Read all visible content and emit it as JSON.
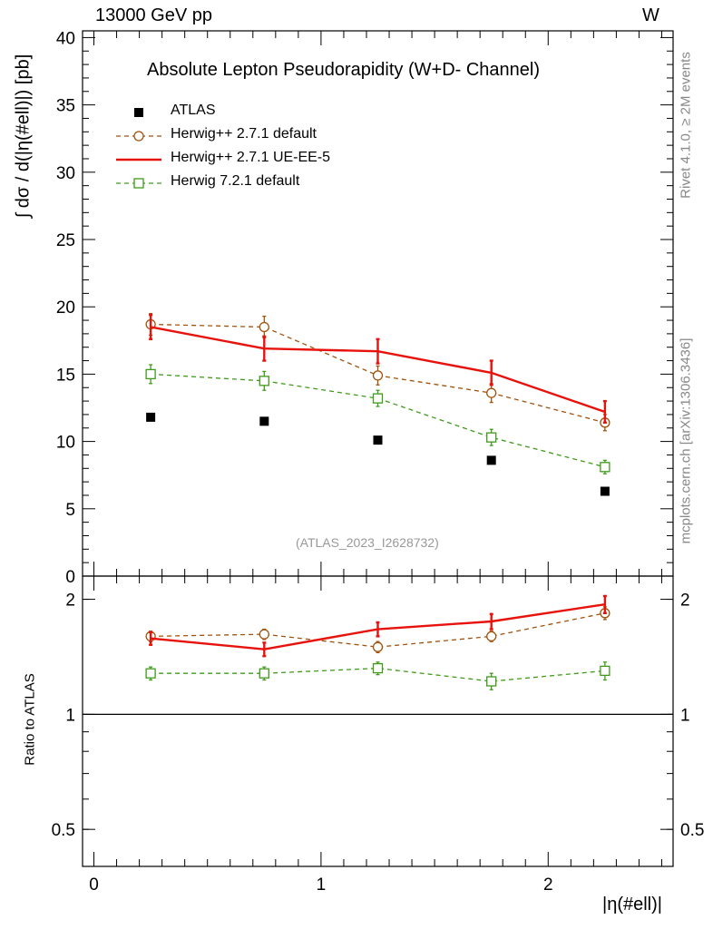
{
  "header": {
    "energy_label": "13000 GeV pp",
    "process_label": "W"
  },
  "side_text": {
    "rivet": "Rivet 4.1.0, ≥ 2M events",
    "mcplots": "mcplots.cern.ch [arXiv:1306.3436]"
  },
  "colors": {
    "atlas": "#000000",
    "herwigpp_default": "#a0520c",
    "herwigpp_ueee5": "#e8120c",
    "herwig7": "#3f9a1a",
    "watermark": "#999999"
  },
  "chart_data": [
    {
      "type": "scatter",
      "title": "Absolute Lepton Pseudorapidity (W+D- Channel)",
      "ylabel": "∫ dσ / d(|η(#ell)|) [pb]",
      "xlabel": "|η(#ell)|",
      "watermark": "(ATLAS_2023_I2628732)",
      "xlim": [
        -0.05,
        2.55
      ],
      "ylim": [
        0,
        40.5
      ],
      "yticks": [
        0,
        5,
        10,
        15,
        20,
        25,
        30,
        35,
        40
      ],
      "ytick_labels": [
        "0",
        "5",
        "10",
        "15",
        "20",
        "25",
        "30",
        "35",
        "40"
      ],
      "x": [
        0.25,
        0.75,
        1.25,
        1.75,
        2.25
      ],
      "legend_position": "top-left",
      "series": [
        {
          "name": "ATLAS",
          "style": "marker-only",
          "marker": "filled-square",
          "values": [
            11.8,
            11.5,
            10.1,
            8.6,
            6.3
          ],
          "errors": [
            0,
            0,
            0,
            0,
            0
          ]
        },
        {
          "name": "Herwig++ 2.7.1 default",
          "style": "dashed",
          "marker": "open-circle",
          "values": [
            18.7,
            18.5,
            14.9,
            13.6,
            11.4
          ],
          "errors": [
            0.8,
            0.8,
            0.7,
            0.7,
            0.6
          ]
        },
        {
          "name": "Herwig++ 2.7.1 UE-EE-5",
          "style": "solid",
          "marker": "none",
          "values": [
            18.5,
            16.9,
            16.7,
            15.1,
            12.2
          ],
          "errors": [
            0.9,
            0.9,
            0.9,
            0.9,
            0.8
          ]
        },
        {
          "name": "Herwig 7.2.1 default",
          "style": "dashed",
          "marker": "open-square",
          "values": [
            15.0,
            14.5,
            13.2,
            10.3,
            8.1
          ],
          "errors": [
            0.7,
            0.7,
            0.6,
            0.6,
            0.5
          ]
        }
      ]
    },
    {
      "type": "line",
      "ylabel": "Ratio to ATLAS",
      "xlabel": "|η(#ell)|",
      "scale": "log",
      "xlim": [
        -0.05,
        2.55
      ],
      "ylim": [
        0.4,
        2.3
      ],
      "xticks": [
        0,
        1,
        2
      ],
      "xtick_labels": [
        "0",
        "1",
        "2"
      ],
      "yticks": [
        0.5,
        1,
        2
      ],
      "ytick_labels": [
        "0.5",
        "1",
        "2"
      ],
      "reference_line": 1,
      "x": [
        0.25,
        0.75,
        1.25,
        1.75,
        2.25
      ],
      "series": [
        {
          "name": "Herwig++ 2.7.1 default",
          "values": [
            1.6,
            1.62,
            1.5,
            1.6,
            1.84
          ],
          "errors": [
            0.05,
            0.05,
            0.05,
            0.05,
            0.07
          ]
        },
        {
          "name": "Herwig++ 2.7.1 UE-EE-5",
          "values": [
            1.58,
            1.48,
            1.67,
            1.75,
            1.94
          ],
          "errors": [
            0.06,
            0.06,
            0.07,
            0.08,
            0.1
          ]
        },
        {
          "name": "Herwig 7.2.1 default",
          "values": [
            1.28,
            1.28,
            1.32,
            1.22,
            1.3
          ],
          "errors": [
            0.05,
            0.05,
            0.05,
            0.06,
            0.07
          ]
        }
      ]
    }
  ]
}
